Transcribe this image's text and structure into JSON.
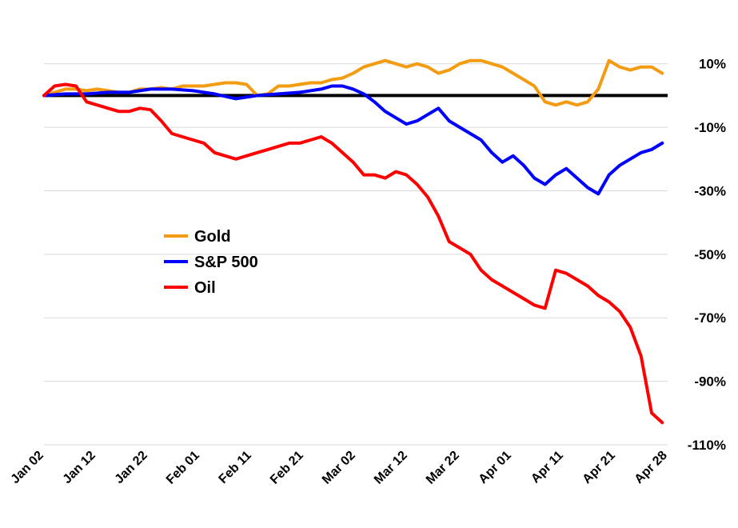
{
  "chart_data": {
    "type": "line",
    "title": "",
    "xlabel": "",
    "ylabel": "",
    "x_tick_labels": [
      "Jan 02",
      "Jan 12",
      "Jan 22",
      "Feb 01",
      "Feb 11",
      "Feb 21",
      "Mar 02",
      "Mar 12",
      "Mar 22",
      "Apr 01",
      "Apr 11",
      "Apr 21",
      "Apr 28"
    ],
    "y_tick_labels": [
      "10%",
      "-10%",
      "-30%",
      "-50%",
      "-70%",
      "-90%",
      "-110%"
    ],
    "y_ticks": [
      10,
      -10,
      -30,
      -50,
      -70,
      -90,
      -110
    ],
    "ylim": [
      -110,
      20
    ],
    "xlim": [
      0,
      117
    ],
    "grid": "horizontal",
    "legend_position": "center-left",
    "baseline": 0,
    "baseline_color": "#000000",
    "series": [
      {
        "name": "Gold",
        "color": "#f39c12",
        "points": [
          [
            0,
            0
          ],
          [
            2,
            1
          ],
          [
            4,
            2
          ],
          [
            6,
            2
          ],
          [
            8,
            1.5
          ],
          [
            10,
            2
          ],
          [
            12,
            1.5
          ],
          [
            14,
            1
          ],
          [
            16,
            1
          ],
          [
            18,
            2
          ],
          [
            20,
            2
          ],
          [
            22,
            2.5
          ],
          [
            24,
            2
          ],
          [
            26,
            3
          ],
          [
            28,
            3
          ],
          [
            30,
            3
          ],
          [
            32,
            3.5
          ],
          [
            34,
            4
          ],
          [
            36,
            4
          ],
          [
            38,
            3.5
          ],
          [
            40,
            0
          ],
          [
            42,
            0.5
          ],
          [
            44,
            3
          ],
          [
            46,
            3
          ],
          [
            48,
            3.5
          ],
          [
            50,
            4
          ],
          [
            52,
            4
          ],
          [
            54,
            5
          ],
          [
            56,
            5.5
          ],
          [
            58,
            7
          ],
          [
            60,
            9
          ],
          [
            62,
            10
          ],
          [
            64,
            11
          ],
          [
            66,
            10
          ],
          [
            68,
            9
          ],
          [
            70,
            10
          ],
          [
            72,
            9
          ],
          [
            74,
            7
          ],
          [
            76,
            8
          ],
          [
            78,
            10
          ],
          [
            80,
            11
          ],
          [
            82,
            11
          ],
          [
            84,
            10
          ],
          [
            86,
            9
          ],
          [
            88,
            7
          ],
          [
            90,
            5
          ],
          [
            92,
            3
          ],
          [
            94,
            -2
          ],
          [
            96,
            -3
          ],
          [
            98,
            -2
          ],
          [
            100,
            -3
          ],
          [
            102,
            -2
          ],
          [
            104,
            2
          ],
          [
            106,
            11
          ],
          [
            108,
            9
          ],
          [
            110,
            8
          ],
          [
            112,
            9
          ],
          [
            114,
            9
          ],
          [
            116,
            7
          ]
        ]
      },
      {
        "name": "S&P 500",
        "color": "#0000ff",
        "points": [
          [
            0,
            0
          ],
          [
            4,
            0.5
          ],
          [
            8,
            0.5
          ],
          [
            12,
            1
          ],
          [
            16,
            1
          ],
          [
            20,
            2
          ],
          [
            24,
            2
          ],
          [
            28,
            1.5
          ],
          [
            32,
            0.5
          ],
          [
            36,
            -1
          ],
          [
            40,
            0
          ],
          [
            44,
            0.5
          ],
          [
            48,
            1
          ],
          [
            52,
            2
          ],
          [
            54,
            3
          ],
          [
            56,
            3
          ],
          [
            58,
            2
          ],
          [
            60,
            0.5
          ],
          [
            62,
            -2
          ],
          [
            64,
            -5
          ],
          [
            66,
            -7
          ],
          [
            68,
            -9
          ],
          [
            70,
            -8
          ],
          [
            72,
            -6
          ],
          [
            74,
            -4
          ],
          [
            76,
            -8
          ],
          [
            78,
            -10
          ],
          [
            80,
            -12
          ],
          [
            82,
            -14
          ],
          [
            84,
            -18
          ],
          [
            86,
            -21
          ],
          [
            88,
            -19
          ],
          [
            90,
            -22
          ],
          [
            92,
            -26
          ],
          [
            94,
            -28
          ],
          [
            96,
            -25
          ],
          [
            98,
            -23
          ],
          [
            100,
            -26
          ],
          [
            102,
            -29
          ],
          [
            104,
            -31
          ],
          [
            106,
            -25
          ],
          [
            108,
            -22
          ],
          [
            110,
            -20
          ],
          [
            112,
            -18
          ],
          [
            114,
            -17
          ],
          [
            116,
            -15
          ]
        ]
      },
      {
        "name": "Oil",
        "color": "#ff0000",
        "points": [
          [
            0,
            0
          ],
          [
            2,
            3
          ],
          [
            4,
            3.5
          ],
          [
            6,
            3
          ],
          [
            8,
            -2
          ],
          [
            10,
            -3
          ],
          [
            12,
            -4
          ],
          [
            14,
            -5
          ],
          [
            16,
            -5
          ],
          [
            18,
            -4
          ],
          [
            20,
            -4.5
          ],
          [
            22,
            -8
          ],
          [
            24,
            -12
          ],
          [
            26,
            -13
          ],
          [
            28,
            -14
          ],
          [
            30,
            -15
          ],
          [
            32,
            -18
          ],
          [
            34,
            -19
          ],
          [
            36,
            -20
          ],
          [
            38,
            -19
          ],
          [
            40,
            -18
          ],
          [
            42,
            -17
          ],
          [
            44,
            -16
          ],
          [
            46,
            -15
          ],
          [
            48,
            -15
          ],
          [
            50,
            -14
          ],
          [
            52,
            -13
          ],
          [
            54,
            -15
          ],
          [
            56,
            -18
          ],
          [
            58,
            -21
          ],
          [
            60,
            -25
          ],
          [
            62,
            -25
          ],
          [
            64,
            -26
          ],
          [
            66,
            -24
          ],
          [
            68,
            -25
          ],
          [
            70,
            -28
          ],
          [
            72,
            -32
          ],
          [
            74,
            -38
          ],
          [
            76,
            -46
          ],
          [
            78,
            -48
          ],
          [
            80,
            -50
          ],
          [
            82,
            -55
          ],
          [
            84,
            -58
          ],
          [
            86,
            -60
          ],
          [
            88,
            -62
          ],
          [
            90,
            -64
          ],
          [
            92,
            -66
          ],
          [
            94,
            -67
          ],
          [
            96,
            -55
          ],
          [
            98,
            -56
          ],
          [
            100,
            -58
          ],
          [
            102,
            -60
          ],
          [
            104,
            -63
          ],
          [
            106,
            -65
          ],
          [
            108,
            -68
          ],
          [
            110,
            -73
          ],
          [
            112,
            -82
          ],
          [
            114,
            -100
          ],
          [
            116,
            -103
          ]
        ]
      }
    ]
  }
}
